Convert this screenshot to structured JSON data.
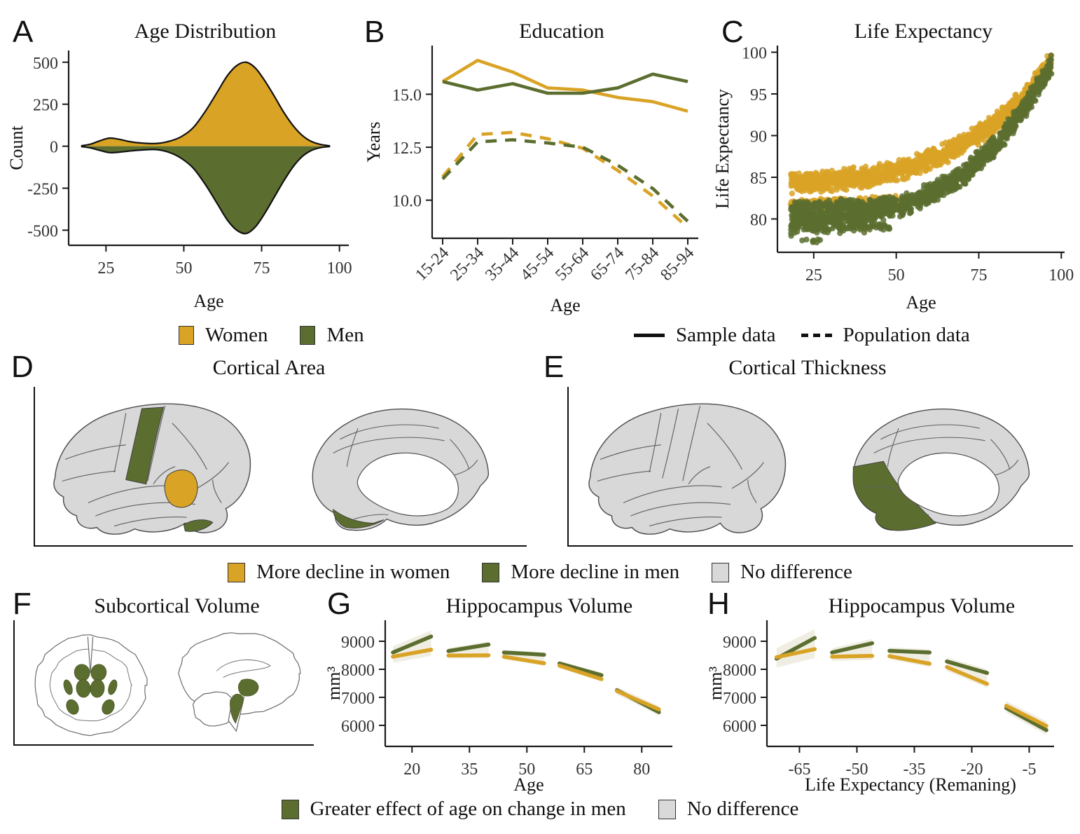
{
  "colors": {
    "women": "#D9A326",
    "men": "#5C6E2F",
    "no_difference": "#D9D9D9",
    "axis": "#1a1a1a",
    "ribbon": "#cfc9a8"
  },
  "panels": {
    "A": {
      "letter": "A",
      "title": "Age Distribution"
    },
    "B": {
      "letter": "B",
      "title": "Education"
    },
    "C": {
      "letter": "C",
      "title": "Life Expectancy"
    },
    "D": {
      "letter": "D",
      "title": "Cortical Area"
    },
    "E": {
      "letter": "E",
      "title": "Cortical Thickness"
    },
    "F": {
      "letter": "F",
      "title": "Subcortical Volume"
    },
    "G": {
      "letter": "G",
      "title": "Hippocampus Volume"
    },
    "H": {
      "letter": "H",
      "title": "Hippocampus Volume"
    }
  },
  "legends": {
    "sex": {
      "items": [
        {
          "label": "Women",
          "color": "women"
        },
        {
          "label": "Men",
          "color": "men"
        }
      ]
    },
    "linetype": {
      "items": [
        {
          "label": "Sample data",
          "style": "solid"
        },
        {
          "label": "Population data",
          "style": "dashed"
        }
      ]
    },
    "decline": {
      "items": [
        {
          "label": "More decline in women",
          "color": "women"
        },
        {
          "label": "More decline in men",
          "color": "men"
        },
        {
          "label": "No difference",
          "color": "no_difference"
        }
      ]
    },
    "effect": {
      "items": [
        {
          "label": "Greater effect of age on change in men",
          "color": "men"
        },
        {
          "label": "No difference",
          "color": "no_difference"
        }
      ]
    }
  },
  "brain_maps": {
    "D": {
      "lateral_highlights": [
        {
          "color": "men"
        },
        {
          "color": "women"
        },
        {
          "color": "men"
        }
      ],
      "medial_highlights": [
        {
          "color": "men"
        }
      ]
    },
    "E": {
      "lateral_highlights": [],
      "medial_highlights": [
        {
          "color": "men"
        }
      ]
    },
    "F": {
      "structures_color": "men"
    }
  },
  "chart_data": [
    {
      "panel": "A",
      "type": "area",
      "title": "Age Distribution",
      "xlabel": "Age",
      "ylabel": "Count",
      "xlim": [
        13,
        103
      ],
      "ylim": [
        -590,
        570
      ],
      "x_ticks": [
        25,
        50,
        75,
        100
      ],
      "y_ticks": [
        -500,
        -250,
        0,
        250,
        500
      ],
      "series": [
        {
          "name": "Women",
          "color": "women",
          "points": [
            [
              17,
              2
            ],
            [
              20,
              12
            ],
            [
              23,
              32
            ],
            [
              26,
              48
            ],
            [
              29,
              42
            ],
            [
              33,
              26
            ],
            [
              37,
              18
            ],
            [
              41,
              16
            ],
            [
              45,
              28
            ],
            [
              49,
              55
            ],
            [
              53,
              110
            ],
            [
              57,
              210
            ],
            [
              61,
              330
            ],
            [
              64,
              420
            ],
            [
              67,
              480
            ],
            [
              70,
              500
            ],
            [
              73,
              465
            ],
            [
              76,
              390
            ],
            [
              79,
              300
            ],
            [
              82,
              205
            ],
            [
              85,
              125
            ],
            [
              88,
              65
            ],
            [
              91,
              28
            ],
            [
              94,
              10
            ],
            [
              97,
              2
            ]
          ]
        },
        {
          "name": "Men",
          "color": "men",
          "points": [
            [
              17,
              -2
            ],
            [
              20,
              -10
            ],
            [
              23,
              -25
            ],
            [
              26,
              -38
            ],
            [
              29,
              -36
            ],
            [
              33,
              -28
            ],
            [
              37,
              -22
            ],
            [
              41,
              -20
            ],
            [
              45,
              -35
            ],
            [
              49,
              -70
            ],
            [
              53,
              -130
            ],
            [
              57,
              -230
            ],
            [
              61,
              -350
            ],
            [
              64,
              -440
            ],
            [
              67,
              -500
            ],
            [
              70,
              -520
            ],
            [
              73,
              -480
            ],
            [
              76,
              -400
            ],
            [
              79,
              -305
            ],
            [
              82,
              -210
            ],
            [
              85,
              -125
            ],
            [
              88,
              -62
            ],
            [
              91,
              -25
            ],
            [
              94,
              -8
            ],
            [
              97,
              -2
            ]
          ]
        }
      ]
    },
    {
      "panel": "B",
      "type": "line",
      "title": "Education",
      "xlabel": "Age",
      "ylabel": "Years",
      "categories": [
        "15-24",
        "25-34",
        "35-44",
        "45-54",
        "55-64",
        "65-74",
        "75-84",
        "85-94"
      ],
      "ylim": [
        8.2,
        17.3
      ],
      "y_ticks": [
        10.0,
        12.5,
        15.0
      ],
      "y_tick_labels": [
        "10.0",
        "12.5",
        "15.0"
      ],
      "series": [
        {
          "name": "Women sample",
          "color": "women",
          "style": "solid",
          "values": [
            15.6,
            16.6,
            16.05,
            15.3,
            15.2,
            14.85,
            14.65,
            14.2
          ]
        },
        {
          "name": "Men sample",
          "color": "men",
          "style": "solid",
          "values": [
            15.6,
            15.2,
            15.5,
            15.05,
            15.05,
            15.3,
            15.95,
            15.6
          ]
        },
        {
          "name": "Women population",
          "color": "women",
          "style": "dashed",
          "values": [
            11.1,
            13.1,
            13.2,
            12.9,
            12.45,
            11.4,
            10.2,
            8.7
          ]
        },
        {
          "name": "Men population",
          "color": "men",
          "style": "dashed",
          "values": [
            11.0,
            12.75,
            12.85,
            12.7,
            12.5,
            11.65,
            10.55,
            9.0
          ]
        }
      ]
    },
    {
      "panel": "C",
      "type": "scatter",
      "title": "Life Expectancy",
      "xlabel": "Age",
      "ylabel": "Life Expectancy",
      "xlim": [
        14,
        101
      ],
      "ylim": [
        76,
        100.8
      ],
      "x_ticks": [
        25,
        50,
        75,
        100
      ],
      "y_ticks": [
        80,
        85,
        90,
        95,
        100
      ],
      "series": [
        {
          "name": "Women",
          "color": "women",
          "n": 1250,
          "age_range": [
            18,
            97
          ],
          "jitter": 0.75,
          "trend": [
            [
              18,
              84.3
            ],
            [
              40,
              84.9
            ],
            [
              55,
              86.2
            ],
            [
              70,
              88.8
            ],
            [
              80,
              91.5
            ],
            [
              88,
              94.3
            ],
            [
              94,
              97.2
            ],
            [
              97,
              98.9
            ]
          ]
        },
        {
          "name": "Men",
          "color": "men",
          "n": 1250,
          "age_range": [
            18,
            97
          ],
          "jitter": 0.75,
          "trend": [
            [
              18,
              79.7
            ],
            [
              40,
              80.4
            ],
            [
              55,
              82.0
            ],
            [
              70,
              85.2
            ],
            [
              80,
              88.8
            ],
            [
              88,
              92.8
            ],
            [
              94,
              96.4
            ],
            [
              97,
              98.6
            ]
          ]
        },
        {
          "name": "Women cohort band",
          "color": "women",
          "n": 240,
          "age_range": [
            18,
            50
          ],
          "jitter": 0.32,
          "trend": [
            [
              18,
              81.7
            ],
            [
              50,
              82.3
            ]
          ]
        },
        {
          "name": "Men cohort band",
          "color": "men",
          "n": 240,
          "age_range": [
            18,
            50
          ],
          "jitter": 0.4,
          "trend": [
            [
              18,
              81.4
            ],
            [
              50,
              82.0
            ]
          ]
        },
        {
          "name": "Men low band",
          "color": "men",
          "n": 80,
          "age_range": [
            18,
            48
          ],
          "jitter": 0.35,
          "trend": [
            [
              18,
              78.6
            ],
            [
              48,
              79.1
            ]
          ]
        },
        {
          "name": "Men lowest outliers",
          "color": "men",
          "n": 8,
          "age_range": [
            19,
            27
          ],
          "jitter": 0.15,
          "trend": [
            [
              19,
              77.2
            ],
            [
              27,
              77.4
            ]
          ]
        }
      ]
    },
    {
      "panel": "G",
      "type": "segments",
      "title": "Hippocampus Volume",
      "xlabel": "Age",
      "ylabel": "mm³",
      "xlim": [
        13,
        88
      ],
      "ylim": [
        5250,
        9750
      ],
      "x_ticks": [
        20,
        35,
        50,
        65,
        80
      ],
      "y_ticks": [
        6000,
        7000,
        8000,
        9000
      ],
      "segments": [
        {
          "x": [
            15,
            25
          ],
          "men": [
            8600,
            9170
          ],
          "women": [
            8450,
            8700
          ],
          "band": 220
        },
        {
          "x": [
            29.5,
            40
          ],
          "men": [
            8650,
            8885
          ],
          "women": [
            8490,
            8500
          ],
          "band": 110
        },
        {
          "x": [
            44,
            54.5
          ],
          "men": [
            8600,
            8520
          ],
          "women": [
            8450,
            8215
          ],
          "band": 90
        },
        {
          "x": [
            58.5,
            69.5
          ],
          "men": [
            8210,
            7790
          ],
          "women": [
            8130,
            7650
          ],
          "band": 90
        },
        {
          "x": [
            73.5,
            84.5
          ],
          "men": [
            7255,
            6470
          ],
          "women": [
            7225,
            6570
          ],
          "band": 120
        }
      ]
    },
    {
      "panel": "H",
      "type": "segments",
      "title": "Hippocampus Volume",
      "xlabel": "Life Expectancy (Remaning)",
      "ylabel": "mm³",
      "xlim": [
        -73.5,
        1.5
      ],
      "ylim": [
        5250,
        9750
      ],
      "x_ticks": [
        -65,
        -50,
        -35,
        -20,
        -5
      ],
      "y_ticks": [
        6000,
        7000,
        8000,
        9000
      ],
      "segments": [
        {
          "x": [
            -71,
            -61
          ],
          "men": [
            8380,
            9120
          ],
          "women": [
            8430,
            8720
          ],
          "band": 320
        },
        {
          "x": [
            -56.5,
            -46
          ],
          "men": [
            8600,
            8930
          ],
          "women": [
            8450,
            8480
          ],
          "band": 150
        },
        {
          "x": [
            -41.5,
            -31
          ],
          "men": [
            8660,
            8600
          ],
          "women": [
            8470,
            8200
          ],
          "band": 120
        },
        {
          "x": [
            -26.5,
            -16
          ],
          "men": [
            8280,
            7870
          ],
          "women": [
            8080,
            7480
          ],
          "band": 140
        },
        {
          "x": [
            -11,
            -0.5
          ],
          "men": [
            6620,
            5830
          ],
          "women": [
            6700,
            5980
          ],
          "band": 170
        }
      ]
    }
  ]
}
